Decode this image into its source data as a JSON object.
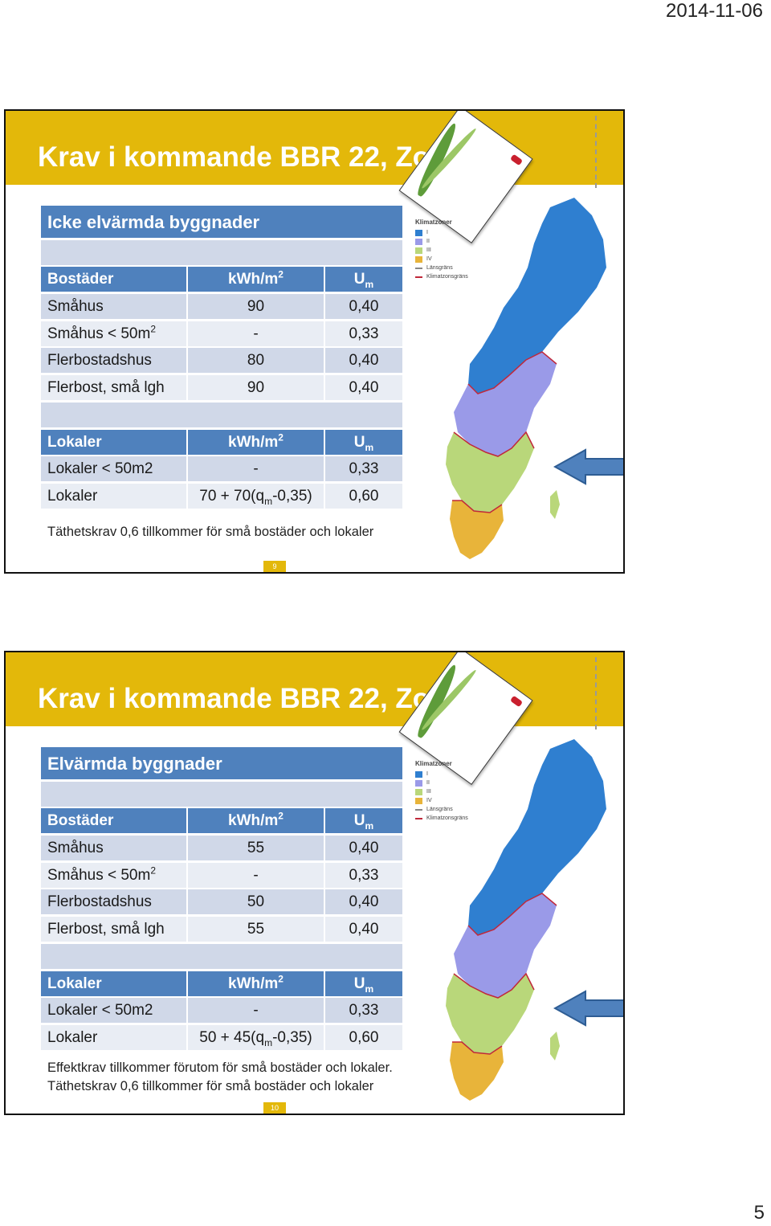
{
  "header": {
    "date": "2014-11-06"
  },
  "footer": {
    "page_number": "5"
  },
  "slides": [
    {
      "title": "Krav i kommande BBR 22,  Zon III",
      "table_heading": "Icke elvärmda byggnader",
      "bostader": {
        "col1": "Bostäder",
        "col2_base": "kWh/m",
        "col2_sup": "2",
        "col3_base": "U",
        "col3_sub": "m",
        "rows": [
          {
            "name_base": "Småhus",
            "name_sup": "",
            "kwh": "90",
            "u": "0,40"
          },
          {
            "name_base": "Småhus < 50m",
            "name_sup": "2",
            "kwh": "-",
            "u": "0,33"
          },
          {
            "name_base": "Flerbostadshus",
            "name_sup": "",
            "kwh": "80",
            "u": "0,40"
          },
          {
            "name_base": "Flerbost, små lgh",
            "name_sup": "",
            "kwh": "90",
            "u": "0,40"
          }
        ]
      },
      "lokaler": {
        "col1": "Lokaler",
        "col2_base": "kWh/m",
        "col2_sup": "2",
        "col3_base": "U",
        "col3_sub": "m",
        "row1": {
          "name": "Lokaler < 50m2",
          "kwh": "-",
          "u": "0,33"
        },
        "row2": {
          "name": "Lokaler",
          "kwh_pre": "70 + 70(q",
          "kwh_sub": "m",
          "kwh_post": "-0,35)",
          "u": "0,60"
        }
      },
      "notes": [
        "Täthetskrav  0,6 tillkommer för små bostäder och lokaler"
      ],
      "slide_number": "9"
    },
    {
      "title": "Krav i kommande BBR 22,  Zon III",
      "table_heading": "Elvärmda byggnader",
      "bostader": {
        "col1": "Bostäder",
        "col2_base": "kWh/m",
        "col2_sup": "2",
        "col3_base": "U",
        "col3_sub": "m",
        "rows": [
          {
            "name_base": "Småhus",
            "name_sup": "",
            "kwh": "55",
            "u": "0,40"
          },
          {
            "name_base": "Småhus < 50m",
            "name_sup": "2",
            "kwh": "-",
            "u": "0,33"
          },
          {
            "name_base": "Flerbostadshus",
            "name_sup": "",
            "kwh": "50",
            "u": "0,40"
          },
          {
            "name_base": "Flerbost, små lgh",
            "name_sup": "",
            "kwh": "55",
            "u": "0,40"
          }
        ]
      },
      "lokaler": {
        "col1": "Lokaler",
        "col2_base": "kWh/m",
        "col2_sup": "2",
        "col3_base": "U",
        "col3_sub": "m",
        "row1": {
          "name": "Lokaler < 50m2",
          "kwh": "-",
          "u": "0,33"
        },
        "row2": {
          "name": "Lokaler",
          "kwh_pre": "50 + 45(q",
          "kwh_sub": "m",
          "kwh_post": "-0,35)",
          "u": "0,60"
        }
      },
      "notes": [
        "Effektkrav  tillkommer  förutom för små bostäder och lokaler.",
        "Täthetskrav  0,6 tillkommer för små bostäder och lokaler"
      ],
      "slide_number": "10"
    }
  ],
  "map_legend": {
    "title": "Klimatzoner",
    "items": [
      "I",
      "II",
      "III",
      "IV",
      "Länsgräns",
      "Klimatzonsgräns"
    ],
    "colors": [
      "#2f7fd0",
      "#9a9ae8",
      "#b9d77a",
      "#e8b43a",
      "#888888",
      "#c0283a"
    ]
  },
  "colors": {
    "accent": "#e3b80a",
    "table_header": "#4f81bd",
    "row_light": "#e9edf4",
    "row_dark": "#d0d8e8"
  }
}
